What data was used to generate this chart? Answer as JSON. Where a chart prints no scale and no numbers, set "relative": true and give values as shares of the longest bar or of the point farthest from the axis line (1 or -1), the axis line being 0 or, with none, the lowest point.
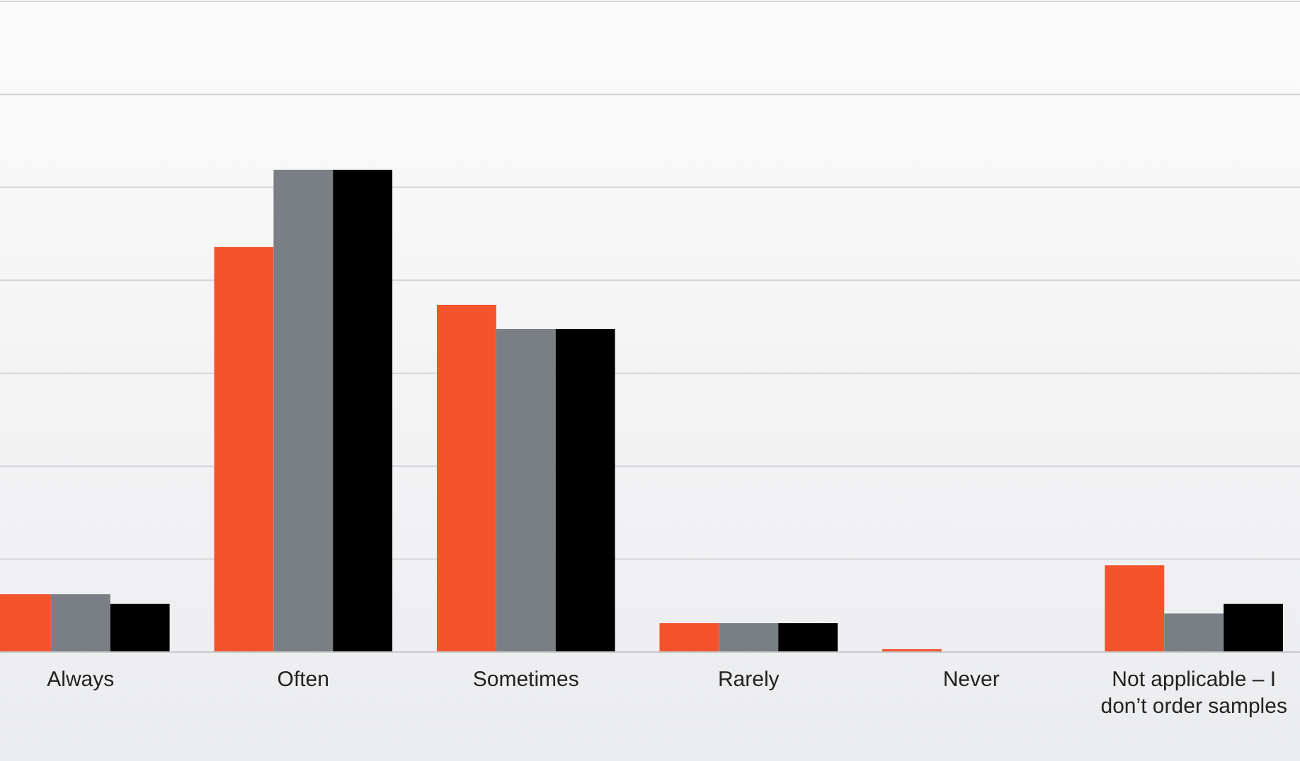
{
  "chart_data": {
    "type": "bar",
    "relative": true,
    "grid": "y",
    "categories": [
      "Always",
      "Often",
      "Sometimes",
      "Rarely",
      "Never",
      "Not applicable – I don’t order samples"
    ],
    "series": [
      {
        "color": "#f4532b",
        "values": [
          0.12,
          0.84,
          0.72,
          0.06,
          0.006,
          0.18
        ]
      },
      {
        "color": "#7a7f85",
        "values": [
          0.12,
          1,
          0.67,
          0.06,
          0,
          0.08
        ]
      },
      {
        "color": "#000000",
        "values": [
          0.1,
          1,
          0.67,
          0.06,
          0,
          0.1
        ]
      }
    ]
  }
}
